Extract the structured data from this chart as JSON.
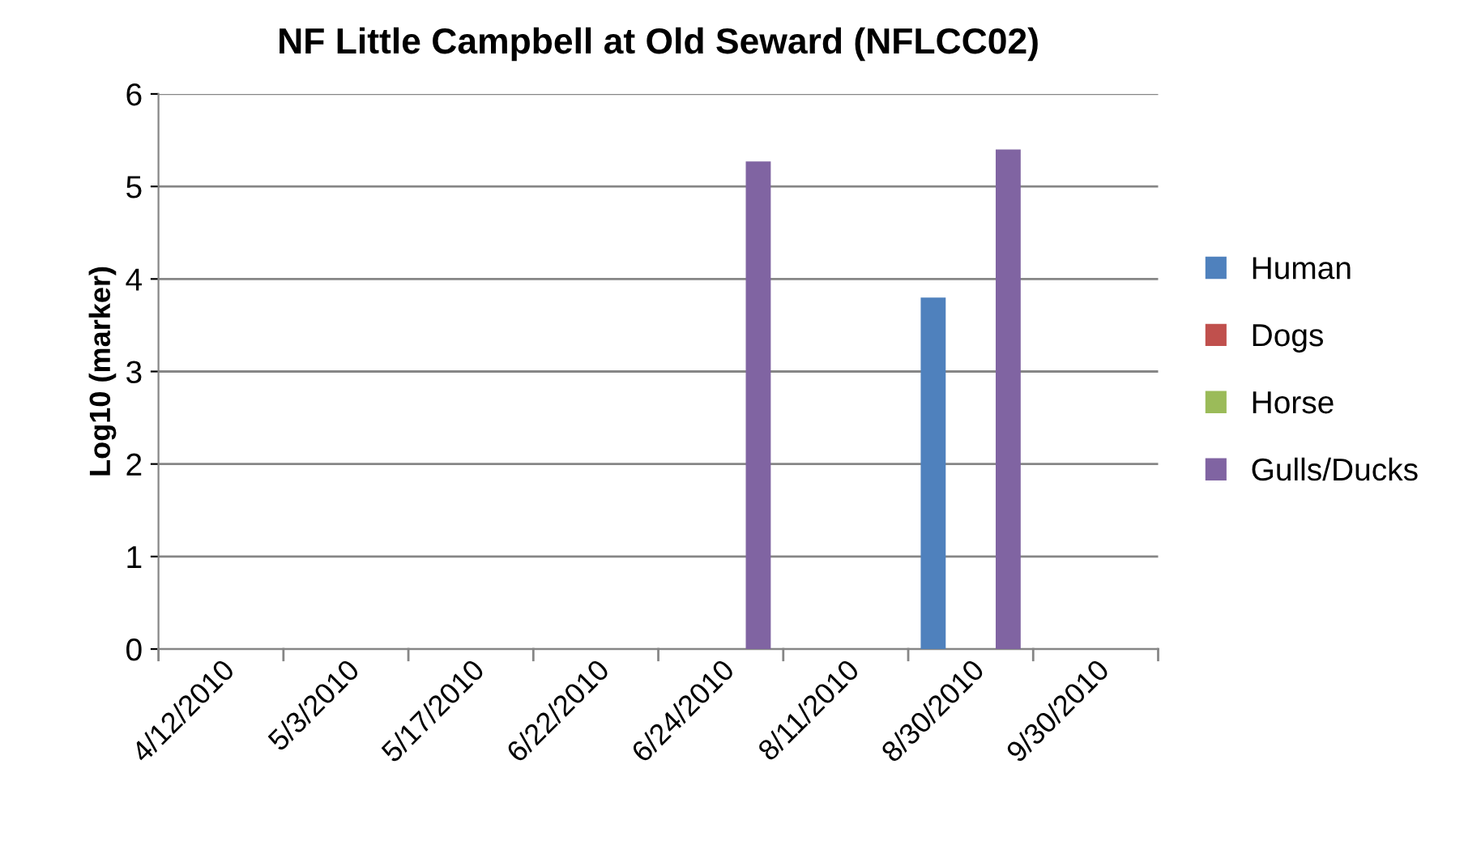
{
  "chart_data": {
    "type": "bar",
    "title": "NF Little Campbell at Old Seward (NFLCC02)",
    "ylabel": "Log10 (marker)",
    "categories": [
      "4/12/2010",
      "5/3/2010",
      "5/17/2010",
      "6/22/2010",
      "6/24/2010",
      "8/11/2010",
      "8/30/2010",
      "9/30/2010"
    ],
    "series": [
      {
        "name": "Human",
        "color": "#4f81bd",
        "values": [
          null,
          null,
          null,
          null,
          null,
          null,
          3.8,
          null
        ]
      },
      {
        "name": "Dogs",
        "color": "#c0504d",
        "values": [
          null,
          null,
          null,
          null,
          null,
          null,
          null,
          null
        ]
      },
      {
        "name": "Horse",
        "color": "#9bbb59",
        "values": [
          null,
          null,
          null,
          null,
          null,
          null,
          null,
          null
        ]
      },
      {
        "name": "Gulls/Ducks",
        "color": "#8064a2",
        "values": [
          null,
          null,
          null,
          null,
          5.27,
          null,
          5.4,
          null
        ]
      }
    ],
    "ylim": [
      0,
      6
    ],
    "yticks": [
      0,
      1,
      2,
      3,
      4,
      5,
      6
    ],
    "grid": "y",
    "legend": "right"
  }
}
